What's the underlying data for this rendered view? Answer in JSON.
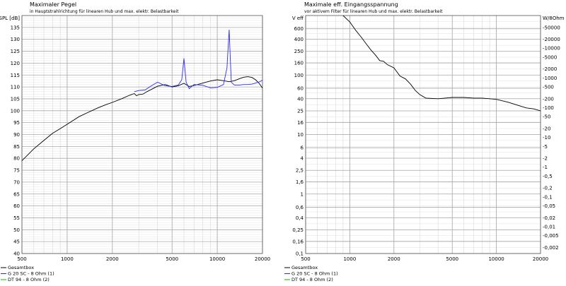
{
  "chart_data": [
    {
      "type": "line",
      "title": "Maximaler Pegel",
      "subtitle": "in Hauptstrahlrichtung für linearen Hub und max. elektr. Belastbarkeit",
      "ylabel": "SPL [dB]",
      "xscale": "log",
      "xlim": [
        500,
        20000
      ],
      "ylim": [
        40,
        140
      ],
      "x_ticks": [
        500,
        1000,
        2000,
        5000,
        10000,
        20000
      ],
      "x_tick_labels": [
        "500",
        "1000",
        "2000",
        "5000",
        "10000",
        "20000"
      ],
      "y_ticks": [
        40,
        45,
        50,
        55,
        60,
        65,
        70,
        75,
        80,
        85,
        90,
        95,
        100,
        105,
        110,
        115,
        120,
        125,
        130,
        135
      ],
      "y_tick_labels": [
        "40",
        "45",
        "50",
        "55",
        "60",
        "65",
        "70",
        "75",
        "80",
        "85",
        "90",
        "95",
        "100",
        "105",
        "110",
        "115",
        "120",
        "125",
        "130",
        "135"
      ],
      "grid": true,
      "legend_position": "bottom-left",
      "series": [
        {
          "name": "Gesamtbox",
          "color": "#000000",
          "x": [
            500,
            600,
            700,
            800,
            900,
            1000,
            1200,
            1400,
            1600,
            1800,
            2000,
            2300,
            2600,
            2800,
            2900,
            3000,
            3200,
            3400,
            3700,
            4000,
            4500,
            5000,
            5500,
            6000,
            6500,
            7000,
            8000,
            9000,
            10000,
            11000,
            12000,
            13000,
            14000,
            15000,
            16000,
            17000,
            18000,
            19000,
            20000
          ],
          "y": [
            79,
            84,
            87.5,
            90.5,
            92.5,
            94.3,
            97.5,
            99.5,
            101.2,
            102.5,
            103.5,
            105,
            106.5,
            107.2,
            106.3,
            106.8,
            107,
            108,
            109.2,
            110.3,
            111,
            110,
            110.5,
            111.5,
            110.2,
            110.6,
            111.6,
            112.5,
            113,
            112.6,
            112.2,
            112.6,
            113.4,
            114.1,
            114.3,
            114,
            113,
            111.5,
            109.5
          ]
        },
        {
          "name": "G 20 SC - 8 Ohm (1)",
          "color": "#2a2aff",
          "x": [
            2800,
            3000,
            3300,
            3600,
            4000,
            4500,
            5000,
            5500,
            5800,
            6000,
            6200,
            6500,
            7000,
            8000,
            9000,
            10000,
            11000,
            11600,
            12000,
            12400,
            13000,
            14000,
            15000,
            16000,
            17000,
            18000,
            19000,
            20000
          ],
          "y": [
            108,
            108.5,
            108.7,
            110.3,
            112,
            110.5,
            110.2,
            110.8,
            113,
            122,
            112,
            109.3,
            111,
            110.7,
            109.6,
            109.8,
            111,
            118,
            134,
            112,
            110.8,
            110.8,
            111,
            111,
            111.2,
            111.6,
            112.1,
            112.8
          ]
        },
        {
          "name": "DT 94 - 8 Ohm (2)",
          "color": "#00bb00",
          "x": [],
          "y": []
        }
      ]
    },
    {
      "type": "line",
      "title": "Maximale eff. Eingangsspannung",
      "subtitle": "vor aktivem Filter für linearen Hub und max. elektr. Belastbarkeit",
      "ylabel": "V eff",
      "y2label": "W/8Ohm",
      "xscale": "log",
      "yscale": "log",
      "xlim": [
        500,
        20000
      ],
      "ylim": [
        0.1,
        1000
      ],
      "x_ticks": [
        500,
        1000,
        2000,
        5000,
        10000,
        20000
      ],
      "x_tick_labels": [
        "500",
        "1000",
        "2000",
        "5000",
        "10000",
        "20000"
      ],
      "y_ticks": [
        0.1,
        0.16,
        0.25,
        0.4,
        0.6,
        1,
        1.6,
        2.5,
        4,
        6,
        10,
        16,
        25,
        40,
        60,
        100,
        160,
        250,
        400,
        600
      ],
      "y_tick_labels": [
        "0,1",
        "0,16",
        "0,25",
        "0,4",
        "0,6",
        "1",
        "1,6",
        "2,5",
        "4",
        "6",
        "10",
        "16",
        "25",
        "40",
        "60",
        "100",
        "160",
        "250",
        "400",
        "600"
      ],
      "y2_ticks": [
        0.002,
        0.005,
        0.01,
        0.02,
        0.05,
        0.1,
        0.2,
        0.5,
        1,
        2,
        5,
        10,
        20,
        50,
        100,
        200,
        500,
        1000,
        2000,
        5000,
        10000,
        20000,
        50000
      ],
      "y2_tick_labels": [
        "-0,002",
        "-0,005",
        "-0,01",
        "-0,02",
        "-0,05",
        "-0,1",
        "-0,2",
        "-0,5",
        "-1",
        "-2",
        "-5",
        "-10",
        "-20",
        "-50",
        "-100",
        "-200",
        "-500",
        "-1000",
        "-2000",
        "-5000",
        "-10000",
        "-20000",
        "-50000"
      ],
      "grid": true,
      "legend_position": "bottom-left",
      "series": [
        {
          "name": "Gesamtbox",
          "color": "#000000",
          "x": [
            900,
            1000,
            1100,
            1200,
            1300,
            1400,
            1500,
            1600,
            1700,
            1800,
            2000,
            2200,
            2400,
            2600,
            2800,
            3000,
            3300,
            4000,
            5000,
            6000,
            7000,
            8000,
            9000,
            10000,
            12000,
            14000,
            16000,
            18000,
            20000
          ],
          "y": [
            1000,
            780,
            560,
            430,
            330,
            260,
            215,
            175,
            170,
            150,
            132,
            96,
            86,
            70,
            55,
            47,
            41,
            40,
            42,
            42,
            41,
            41,
            40,
            39,
            35,
            31,
            28,
            27,
            25
          ]
        },
        {
          "name": "G 20 SC - 8 Ohm (1)",
          "color": "#2a2aff",
          "x": [],
          "y": []
        },
        {
          "name": "DT 94 - 8 Ohm (2)",
          "color": "#00bb00",
          "x": [],
          "y": []
        }
      ]
    }
  ]
}
